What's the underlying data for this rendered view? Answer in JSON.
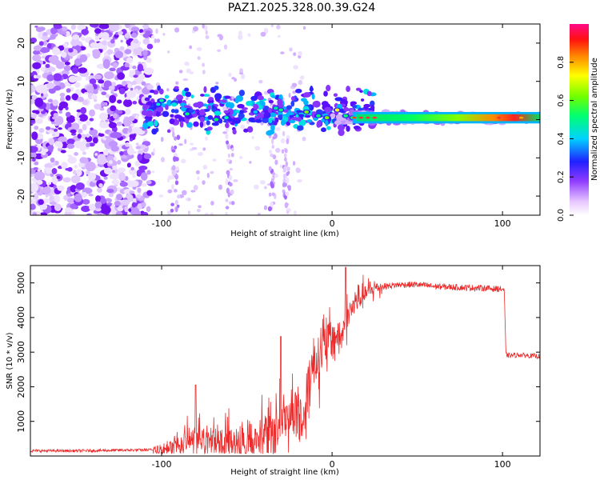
{
  "title": "PAZ1.2025.328.00.39.G24",
  "colors": {
    "snr_line": "#ee2a2a",
    "background": "#ffffff"
  },
  "chart_data": [
    {
      "type": "heatmap",
      "name": "spectrogram",
      "xlabel": "Height of straight line (km)",
      "ylabel": "Frequency (Hz)",
      "xlim": [
        -177,
        122
      ],
      "ylim": [
        -25,
        25
      ],
      "xticks": [
        -100,
        0,
        100
      ],
      "yticks": [
        -20,
        -10,
        0,
        10,
        20
      ],
      "colorbar": {
        "label": "Normalized spectral amplitude",
        "range": [
          0.0,
          1.0
        ],
        "ticks": [
          "0.0",
          "0.2",
          "0.4",
          "0.6",
          "0.8"
        ],
        "colormap": "rainbow white-to-magenta"
      },
      "features": [
        {
          "region": "heights -177 to -106 km",
          "description": "noise speckle at low amplitude (0.1-0.3) across all frequencies"
        },
        {
          "region": "heights -106 to 30 km",
          "description": "clustered components near 0 Hz, broadening 0 to 8 Hz, amplitude 0.3-0.7"
        },
        {
          "region": "heights 30 to 122 km",
          "description": "narrow carrier line at about 0 Hz, amplitude 0.6-0.9"
        }
      ]
    },
    {
      "type": "line",
      "name": "snr",
      "xlabel": "Height of straight line (km)",
      "ylabel": "SNR (10 * v/v)",
      "xlim": [
        -177,
        122
      ],
      "ylim": [
        0,
        5500
      ],
      "xticks": [
        -100,
        0,
        100
      ],
      "yticks": [
        1000,
        2000,
        3000,
        4000,
        5000
      ],
      "series": [
        {
          "name": "SNR",
          "x": [
            -177,
            -150,
            -120,
            -100,
            -95,
            -90,
            -85,
            -80,
            -75,
            -70,
            -65,
            -60,
            -55,
            -50,
            -45,
            -40,
            -35,
            -30,
            -25,
            -20,
            -17,
            -13,
            -10,
            -7,
            -5,
            -2,
            0,
            2,
            5,
            8,
            10,
            12,
            15,
            20,
            25,
            30,
            40,
            50,
            60,
            70,
            80,
            90,
            95,
            100,
            101,
            102,
            103,
            110,
            115,
            122
          ],
          "values": [
            150,
            150,
            170,
            180,
            260,
            330,
            420,
            500,
            480,
            450,
            420,
            390,
            360,
            340,
            500,
            700,
            900,
            1000,
            1200,
            1400,
            900,
            2500,
            2700,
            3000,
            3100,
            3300,
            3400,
            3500,
            3400,
            3900,
            4100,
            4300,
            4500,
            4700,
            4850,
            4900,
            4950,
            4950,
            4900,
            4880,
            4860,
            4850,
            4830,
            4820,
            4800,
            2950,
            2900,
            2920,
            2900,
            2880
          ]
        }
      ],
      "peaks": [
        {
          "x": -80,
          "value": 2050
        },
        {
          "x": -30,
          "value": 3450
        },
        {
          "x": 8,
          "value": 5450
        }
      ]
    }
  ]
}
